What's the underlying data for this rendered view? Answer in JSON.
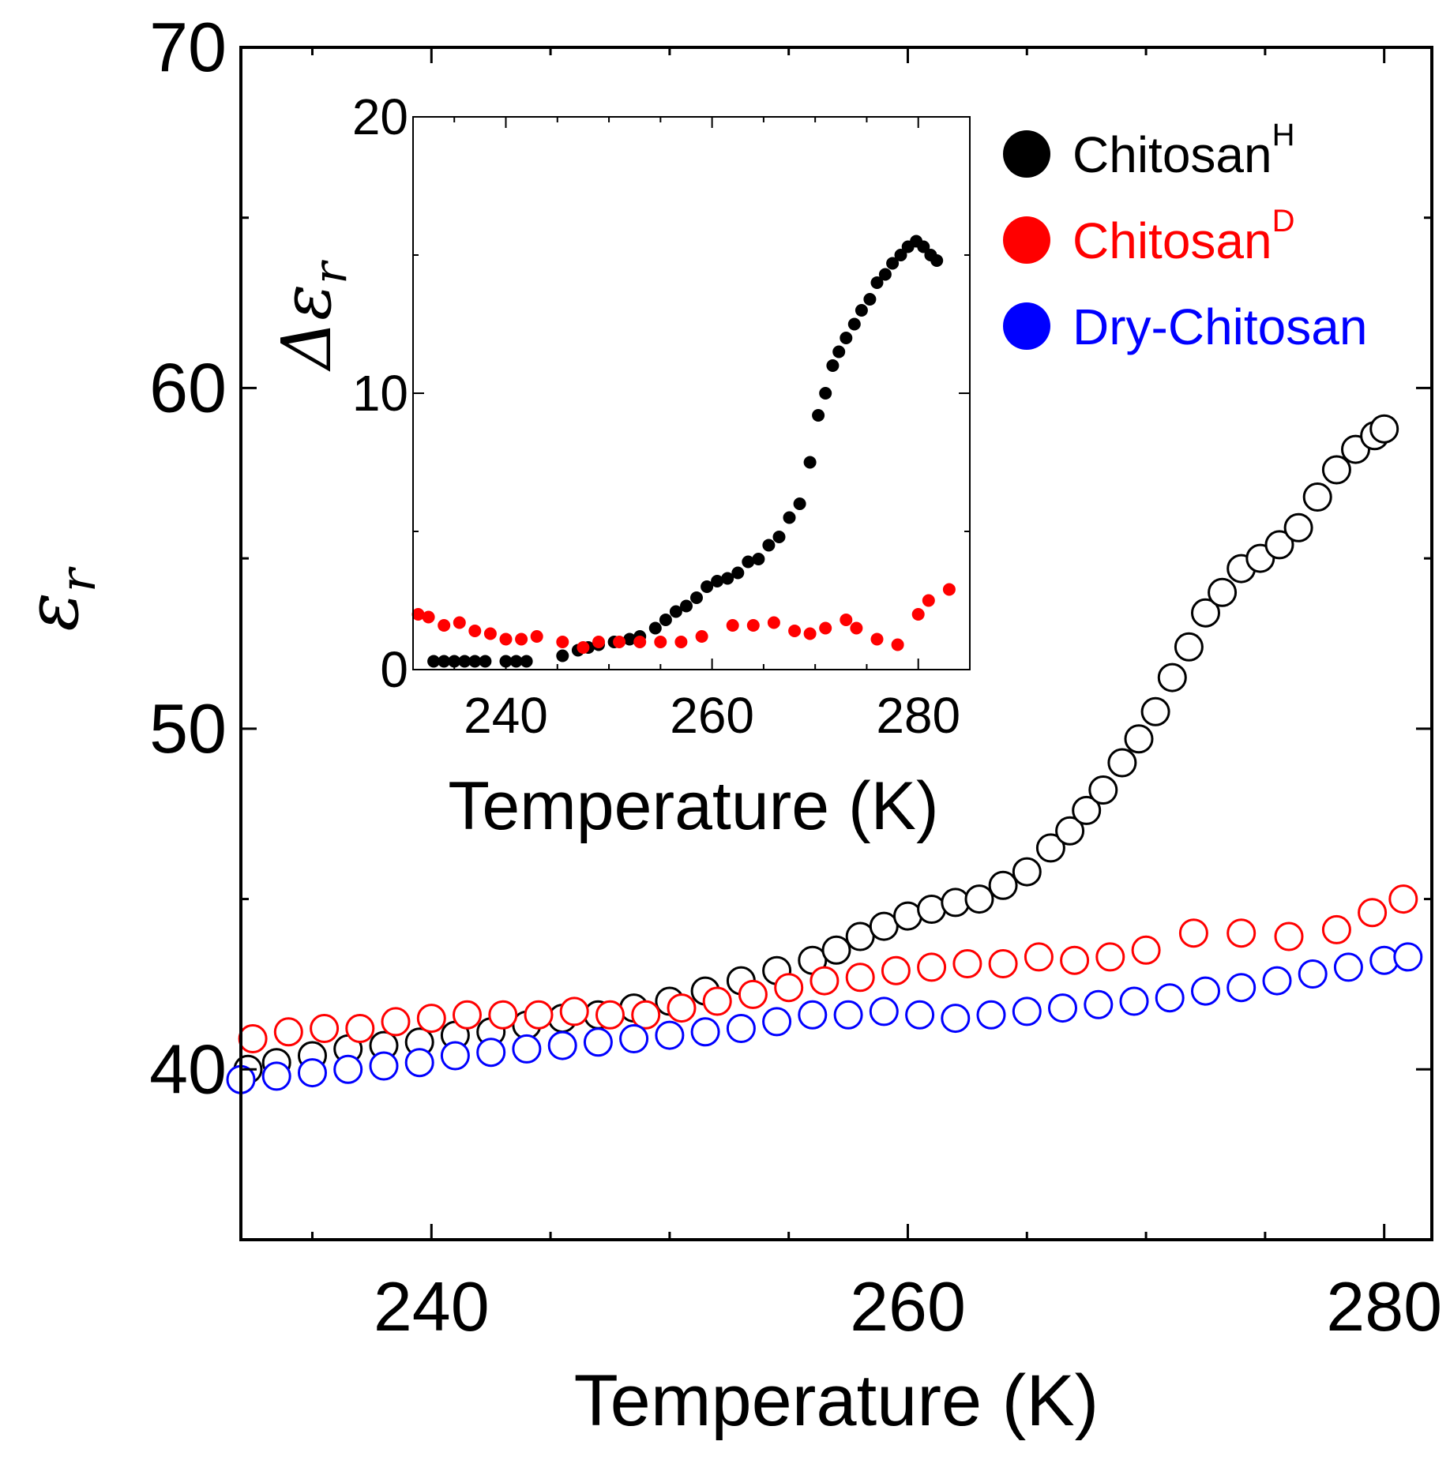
{
  "chart_data": [
    {
      "type": "scatter",
      "panel": "main",
      "title": "",
      "xlabel": "Temperature (K)",
      "ylabel": {
        "symbol": "ε",
        "subscript": "r"
      },
      "xlim": [
        232,
        282
      ],
      "ylim": [
        35,
        70
      ],
      "xticks": [
        240,
        260,
        280
      ],
      "yticks": [
        40,
        50,
        60,
        70
      ],
      "grid": false,
      "legend": {
        "placement": "top-right",
        "entries": [
          {
            "base": "Chitosan",
            "sup": "H",
            "color": "#000000"
          },
          {
            "base": "Chitosan",
            "sup": "D",
            "color": "#ff0000"
          },
          {
            "base": "Dry-Chitosan",
            "sup": "",
            "color": "#0000ff"
          }
        ]
      },
      "series": [
        {
          "name": "ChitosanH",
          "color": "#000000",
          "marker": "open-circle",
          "x": [
            232.3,
            233.5,
            235.0,
            236.5,
            238.0,
            239.5,
            241.0,
            242.5,
            244.0,
            245.5,
            247.0,
            248.5,
            250.0,
            251.5,
            253.0,
            254.5,
            256.0,
            257.0,
            258.0,
            259.0,
            260.0,
            261.0,
            262.0,
            263.0,
            264.0,
            265.0,
            266.0,
            266.8,
            267.5,
            268.2,
            269.0,
            269.7,
            270.4,
            271.1,
            271.8,
            272.5,
            273.2,
            274.0,
            274.8,
            275.6,
            276.4,
            277.2,
            278.0,
            278.8,
            279.6,
            280.0
          ],
          "y": [
            40.0,
            40.2,
            40.4,
            40.6,
            40.7,
            40.8,
            41.0,
            41.1,
            41.3,
            41.5,
            41.6,
            41.8,
            42.0,
            42.3,
            42.6,
            42.9,
            43.2,
            43.5,
            43.9,
            44.2,
            44.5,
            44.7,
            44.9,
            45.0,
            45.4,
            45.8,
            46.5,
            47.0,
            47.6,
            48.2,
            49.0,
            49.7,
            50.5,
            51.5,
            52.4,
            53.4,
            54.0,
            54.7,
            55.0,
            55.4,
            55.9,
            56.8,
            57.6,
            58.2,
            58.6,
            58.8
          ]
        },
        {
          "name": "ChitosanD",
          "color": "#ff0000",
          "marker": "open-circle",
          "x": [
            232.5,
            234.0,
            235.5,
            237.0,
            238.5,
            240.0,
            241.5,
            243.0,
            244.5,
            246.0,
            247.5,
            249.0,
            250.5,
            252.0,
            253.5,
            255.0,
            256.5,
            258.0,
            259.5,
            261.0,
            262.5,
            264.0,
            265.5,
            267.0,
            268.5,
            270.0,
            272.0,
            274.0,
            276.0,
            278.0,
            279.5,
            280.8
          ],
          "y": [
            40.9,
            41.1,
            41.2,
            41.2,
            41.4,
            41.5,
            41.6,
            41.6,
            41.6,
            41.7,
            41.6,
            41.6,
            41.8,
            42.0,
            42.2,
            42.4,
            42.6,
            42.7,
            42.9,
            43.0,
            43.1,
            43.1,
            43.3,
            43.2,
            43.3,
            43.5,
            44.0,
            44.0,
            43.9,
            44.1,
            44.6,
            45.0
          ]
        },
        {
          "name": "Dry-Chitosan",
          "color": "#0000ff",
          "marker": "open-circle",
          "x": [
            232.0,
            233.5,
            235.0,
            236.5,
            238.0,
            239.5,
            241.0,
            242.5,
            244.0,
            245.5,
            247.0,
            248.5,
            250.0,
            251.5,
            253.0,
            254.5,
            256.0,
            257.5,
            259.0,
            260.5,
            262.0,
            263.5,
            265.0,
            266.5,
            268.0,
            269.5,
            271.0,
            272.5,
            274.0,
            275.5,
            277.0,
            278.5,
            280.0,
            281.0
          ],
          "y": [
            39.7,
            39.8,
            39.9,
            40.0,
            40.1,
            40.2,
            40.4,
            40.5,
            40.6,
            40.7,
            40.8,
            40.9,
            41.0,
            41.1,
            41.2,
            41.4,
            41.6,
            41.6,
            41.7,
            41.6,
            41.5,
            41.6,
            41.7,
            41.8,
            41.9,
            42.0,
            42.1,
            42.3,
            42.4,
            42.6,
            42.8,
            43.0,
            43.2,
            43.3
          ]
        }
      ]
    },
    {
      "type": "scatter",
      "panel": "inset",
      "title": "",
      "xlabel": "Temperature (K)",
      "ylabel": {
        "symbol": "Δε",
        "subscript": "r"
      },
      "xlim": [
        231,
        285
      ],
      "ylim": [
        0,
        20
      ],
      "xticks": [
        240,
        260,
        280
      ],
      "yticks": [
        0,
        10,
        20
      ],
      "grid": false,
      "series": [
        {
          "name": "ChitosanH",
          "color": "#000000",
          "marker": "filled-circle",
          "x": [
            233.0,
            234.0,
            235.0,
            236.0,
            237.0,
            238.0,
            240.0,
            241.0,
            242.0,
            245.5,
            247.0,
            248.0,
            249.0,
            250.5,
            252.0,
            253.0,
            254.5,
            255.5,
            256.5,
            257.5,
            258.5,
            259.5,
            260.5,
            261.5,
            262.5,
            263.5,
            264.5,
            265.5,
            266.5,
            267.5,
            268.5,
            269.5,
            270.3,
            271.0,
            271.7,
            272.3,
            273.0,
            273.8,
            274.5,
            275.3,
            276.0,
            276.8,
            277.5,
            278.3,
            279.0,
            279.8,
            280.5,
            281.2,
            281.8
          ],
          "y": [
            0.3,
            0.3,
            0.3,
            0.3,
            0.3,
            0.3,
            0.3,
            0.3,
            0.3,
            0.5,
            0.7,
            0.8,
            0.9,
            1.0,
            1.1,
            1.2,
            1.5,
            1.8,
            2.1,
            2.3,
            2.6,
            3.0,
            3.2,
            3.3,
            3.5,
            3.9,
            4.0,
            4.5,
            4.8,
            5.5,
            6.0,
            7.5,
            9.2,
            10.0,
            11.0,
            11.5,
            12.0,
            12.5,
            13.0,
            13.4,
            14.0,
            14.3,
            14.7,
            15.0,
            15.3,
            15.5,
            15.3,
            15.0,
            14.8
          ]
        },
        {
          "name": "ChitosanD",
          "color": "#ff0000",
          "marker": "filled-circle",
          "x": [
            231.5,
            232.5,
            234.0,
            235.5,
            237.0,
            238.5,
            240.0,
            241.5,
            243.0,
            245.5,
            247.5,
            249.0,
            251.0,
            253.0,
            255.0,
            257.0,
            259.0,
            262.0,
            264.0,
            266.0,
            268.0,
            269.5,
            271.0,
            273.0,
            274.0,
            276.0,
            278.0,
            280.0,
            281.0,
            283.0
          ],
          "y": [
            2.0,
            1.9,
            1.6,
            1.7,
            1.4,
            1.3,
            1.1,
            1.1,
            1.2,
            1.0,
            0.8,
            1.0,
            1.0,
            1.0,
            1.0,
            1.0,
            1.2,
            1.6,
            1.6,
            1.7,
            1.4,
            1.3,
            1.5,
            1.8,
            1.5,
            1.1,
            0.9,
            2.0,
            2.5,
            2.9
          ]
        }
      ]
    }
  ]
}
